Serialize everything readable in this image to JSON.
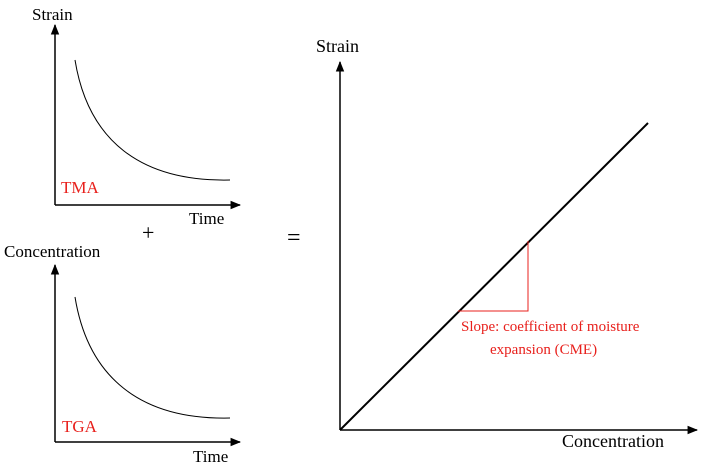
{
  "colors": {
    "axis": "#000000",
    "curve": "#000000",
    "highlight": "#e8201c"
  },
  "tma_plot": {
    "y_label": "Strain",
    "x_label": "Time",
    "tag": "TMA"
  },
  "tga_plot": {
    "y_label": "Concentration",
    "x_label": "Time",
    "tag": "TGA"
  },
  "operators": {
    "plus": "+",
    "equals": "="
  },
  "result_plot": {
    "y_label": "Strain",
    "x_label": "Concentration",
    "slope_line_1": "Slope: coefficient of moisture",
    "slope_line_2": "expansion (CME)"
  }
}
